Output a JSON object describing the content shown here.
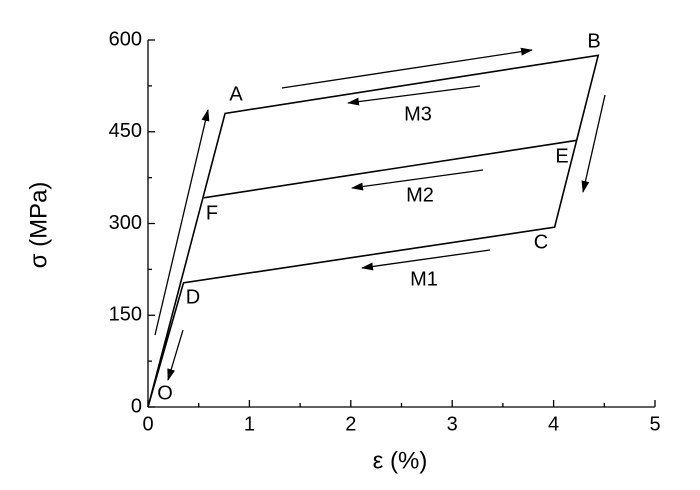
{
  "chart_data": {
    "type": "line",
    "xlabel": "ε (%)",
    "ylabel": "σ (MPa)",
    "xlim": [
      0,
      5
    ],
    "xticks": [
      0,
      1,
      2,
      3,
      4,
      5
    ],
    "ylim": [
      0,
      600
    ],
    "yticks": [
      0,
      150,
      300,
      450,
      600
    ],
    "series": [
      {
        "color": "#000000",
        "x": [
          0,
          0.76,
          4.44,
          4.01,
          0.35,
          0
        ],
        "values": [
          0,
          480,
          575,
          294,
          203,
          0
        ]
      },
      {
        "color": "#000000",
        "x": [
          0.55,
          4.23
        ],
        "values": [
          342,
          436
        ]
      }
    ],
    "annotations": [
      "A",
      "B",
      "C",
      "D",
      "E",
      "F",
      "O",
      "M3",
      "M2",
      "M1"
    ]
  }
}
